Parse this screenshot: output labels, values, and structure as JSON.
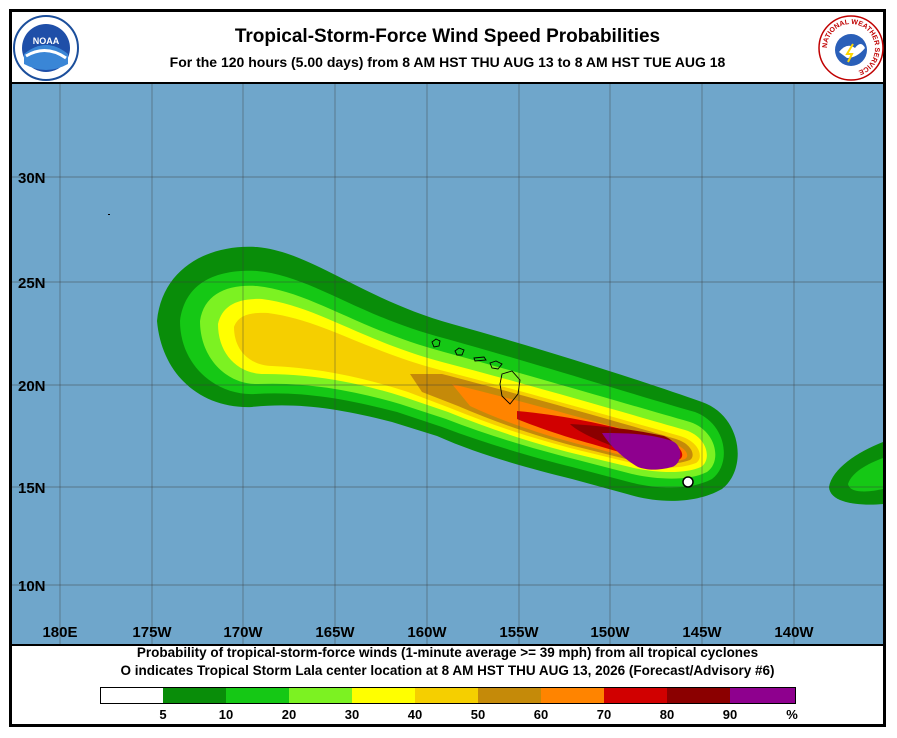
{
  "header": {
    "title": "Tropical-Storm-Force Wind Speed Probabilities",
    "subtitle": "For the 120 hours (5.00 days) from 8 AM HST THU AUG 13 to 8 AM HST TUE AUG 18",
    "left_logo_text": "NOAA",
    "right_logo_text": "NATIONAL WEATHER SERVICE"
  },
  "map": {
    "latitudes": [
      "30N",
      "25N",
      "20N",
      "15N",
      "10N"
    ],
    "longitudes": [
      "180E",
      "175W",
      "170W",
      "165W",
      "160W",
      "155W",
      "150W",
      "145W",
      "140W"
    ],
    "ocean_color": "#6fa6cb",
    "storm_marker": "circle-marker-lala"
  },
  "footer": {
    "line1": "Probability of tropical-storm-force winds (1-minute average >= 39 mph) from all tropical cyclones",
    "line2": "indicates Tropical Storm Lala center location at 8 AM HST THU AUG 13, 2026 (Forecast/Advisory #6)",
    "marker_symbol": "O"
  },
  "legend": {
    "ticks": [
      "5",
      "10",
      "20",
      "30",
      "40",
      "50",
      "60",
      "70",
      "80",
      "90",
      "%"
    ],
    "colors": [
      "#ffffff",
      "#098d09",
      "#15c815",
      "#7cf222",
      "#ffff00",
      "#f5cf00",
      "#c58a09",
      "#ff8400",
      "#d10000",
      "#8b0000",
      "#8e008e"
    ]
  }
}
